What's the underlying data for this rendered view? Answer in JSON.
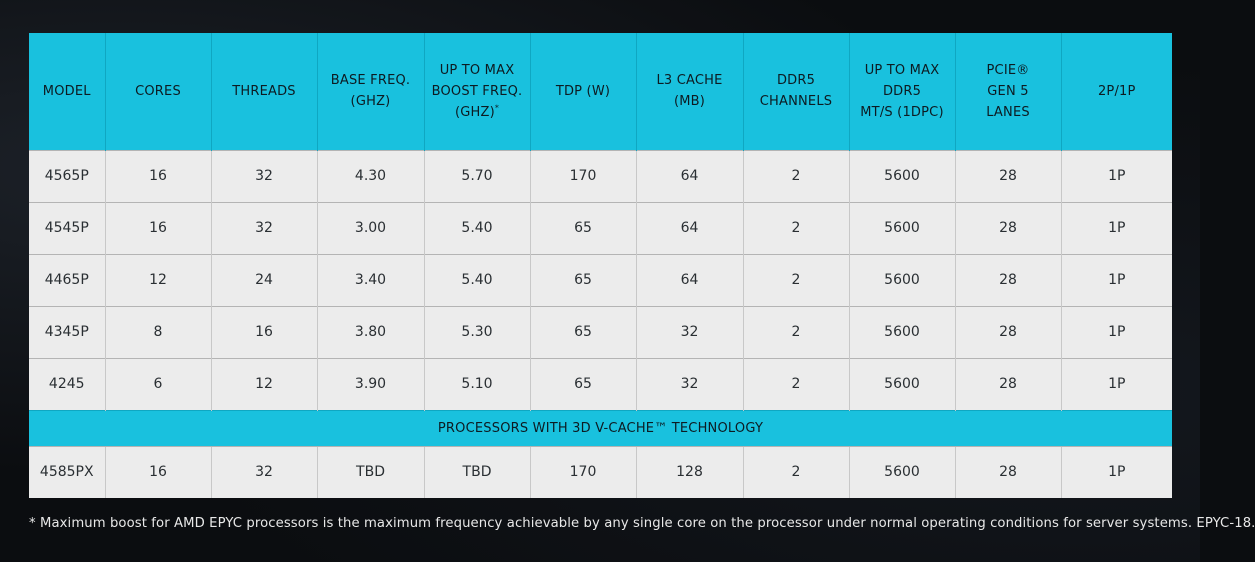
{
  "chart_data": {
    "type": "table",
    "columns": [
      "MODEL",
      "CORES",
      "THREADS",
      "BASE FREQ.\n(GHZ)",
      "UP TO MAX\nBOOST FREQ.\n(GHZ)*",
      "TDP (W)",
      "L3 CACHE\n(MB)",
      "DDR5\nCHANNELS",
      "UP TO MAX\nDDR5\nMT/S (1DPC)",
      "PCIE®\nGEN 5\nLANES",
      "2P/1P"
    ],
    "rows": [
      [
        "4565P",
        "16",
        "32",
        "4.30",
        "5.70",
        "170",
        "64",
        "2",
        "5600",
        "28",
        "1P"
      ],
      [
        "4545P",
        "16",
        "32",
        "3.00",
        "5.40",
        "65",
        "64",
        "2",
        "5600",
        "28",
        "1P"
      ],
      [
        "4465P",
        "12",
        "24",
        "3.40",
        "5.40",
        "65",
        "64",
        "2",
        "5600",
        "28",
        "1P"
      ],
      [
        "4345P",
        "8",
        "16",
        "3.80",
        "5.30",
        "65",
        "32",
        "2",
        "5600",
        "28",
        "1P"
      ],
      [
        "4245",
        "6",
        "12",
        "3.90",
        "5.10",
        "65",
        "32",
        "2",
        "5600",
        "28",
        "1P"
      ]
    ],
    "section_banner": "PROCESSORS WITH 3D V-CACHE™ TECHNOLOGY",
    "section_rows": [
      [
        "4585PX",
        "16",
        "32",
        "TBD",
        "TBD",
        "170",
        "128",
        "2",
        "5600",
        "28",
        "1P"
      ]
    ],
    "footnote": "* Maximum boost for AMD EPYC processors is the maximum frequency achievable by any single core on the processor under normal operating conditions for server systems. EPYC-18."
  },
  "colors": {
    "header_bg": "#19c1de",
    "row_bg": "#ececec",
    "page_bg": "#0b0d10"
  }
}
